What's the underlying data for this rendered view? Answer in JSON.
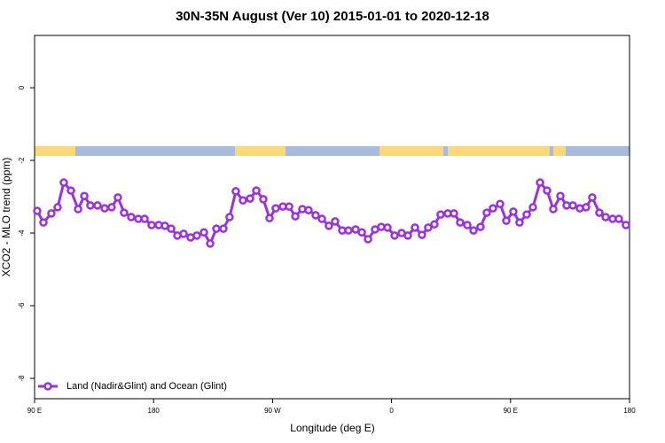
{
  "chart_data": {
    "type": "line",
    "title": "30N-35N August (Ver 10)   2015-01-01 to 2020-12-18",
    "xlabel": "Longitude (deg E)",
    "ylabel": "XCO2 - MLO trend (ppm)",
    "xlim": [
      90,
      540
    ],
    "ylim": [
      -8.56,
      1.44
    ],
    "xticks": [
      {
        "value": 90,
        "label": "90 E"
      },
      180,
      {
        "value": 270,
        "label": "90 W"
      },
      {
        "value": 360,
        "label": "0"
      },
      {
        "value": 450,
        "label": "90 E"
      },
      {
        "value": 540,
        "label": "180"
      }
    ],
    "yticks": [
      0,
      -2,
      -4,
      -6,
      -8
    ],
    "legend": "bottom-left",
    "series": [
      {
        "name": "Land (Nadir&Glint) and Ocean (Glint)",
        "color": "#9b30e0",
        "x": [
          92.0,
          96.7,
          102.7,
          107.4,
          112.1,
          117.5,
          122.9,
          127.6,
          132.2,
          137.6,
          143.0,
          148.3,
          153.0,
          157.7,
          163.1,
          168.5,
          173.2,
          178.5,
          183.9,
          188.6,
          193.3,
          198.0,
          202.7,
          208.0,
          212.7,
          218.1,
          222.8,
          227.5,
          232.8,
          237.5,
          242.2,
          247.6,
          253.0,
          257.7,
          263.0,
          267.7,
          272.4,
          277.8,
          282.5,
          287.2,
          292.5,
          297.2,
          302.6,
          307.3,
          312.6,
          317.3,
          322.7,
          327.4,
          332.8,
          337.5,
          342.2,
          347.5,
          352.2,
          356.9,
          362.3,
          367.6,
          372.3,
          377.7,
          383.0,
          387.7,
          392.4,
          397.1,
          402.5,
          407.2,
          411.9,
          417.3,
          422.0,
          427.3,
          432.0,
          436.7,
          442.1,
          446.8,
          452.1,
          456.8,
          462.2,
          466.9,
          472.3,
          477.6,
          482.3,
          487.7,
          492.4,
          497.1,
          502.4,
          507.1,
          511.8,
          517.2,
          521.9,
          527.2,
          531.9,
          537.3
        ],
        "values": [
          -3.39,
          -3.71,
          -3.46,
          -3.29,
          -2.61,
          -2.83,
          -3.34,
          -2.98,
          -3.24,
          -3.24,
          -3.32,
          -3.29,
          -3.02,
          -3.44,
          -3.56,
          -3.61,
          -3.61,
          -3.78,
          -3.78,
          -3.8,
          -3.88,
          -4.07,
          -4.02,
          -4.12,
          -4.07,
          -3.98,
          -4.29,
          -3.88,
          -3.88,
          -3.56,
          -2.85,
          -3.1,
          -3.05,
          -2.83,
          -3.07,
          -3.59,
          -3.32,
          -3.27,
          -3.27,
          -3.54,
          -3.34,
          -3.37,
          -3.51,
          -3.61,
          -3.8,
          -3.68,
          -3.93,
          -3.93,
          -3.9,
          -3.98,
          -4.17,
          -3.9,
          -3.83,
          -3.85,
          -4.07,
          -4.0,
          -4.07,
          -3.85,
          -4.05,
          -3.85,
          -3.76,
          -3.49,
          -3.46,
          -3.46,
          -3.71,
          -3.78,
          -3.93,
          -3.83,
          -3.44,
          -3.32,
          -3.2,
          -3.66,
          -3.41,
          -3.71,
          -3.49,
          -3.29,
          -2.61,
          -2.83,
          -3.34,
          -2.98,
          -3.24,
          -3.24,
          -3.32,
          -3.29,
          -3.02,
          -3.44,
          -3.56,
          -3.61,
          -3.61,
          -3.78
        ]
      }
    ]
  }
}
